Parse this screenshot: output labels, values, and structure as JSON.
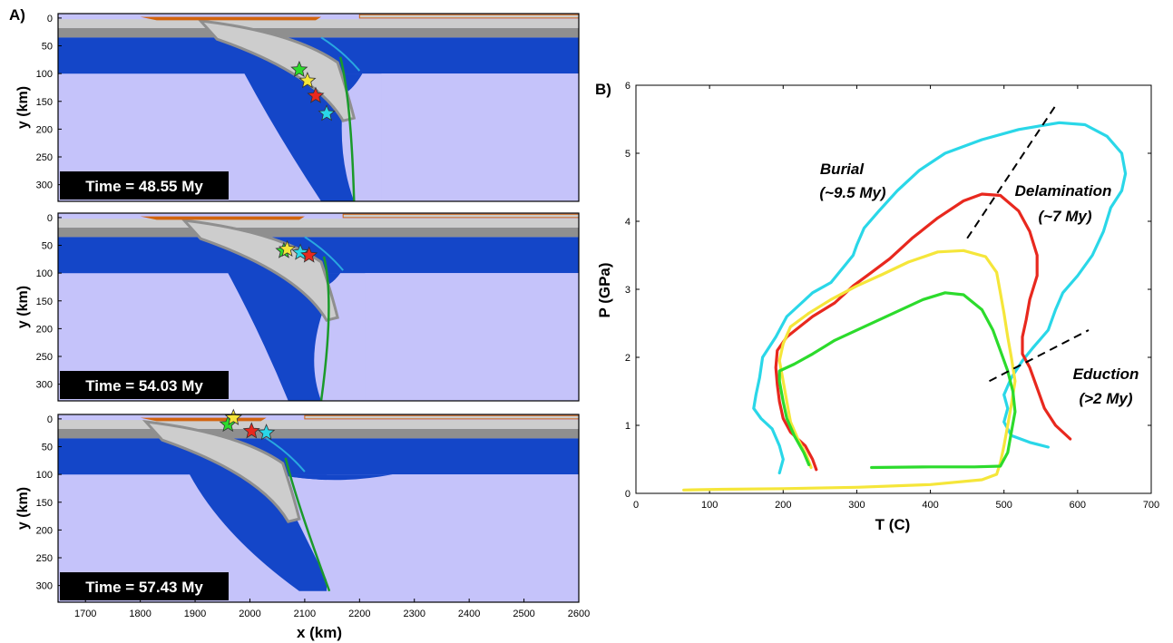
{
  "figure": {
    "panel_a_label": "A)",
    "panel_b_label": "B)"
  },
  "panel_a": {
    "ylabel": "y (km)",
    "xlabel": "x (km)",
    "y_ticks": [
      "0",
      "50",
      "100",
      "150",
      "200",
      "250",
      "300"
    ],
    "x_ticks": [
      "1700",
      "1800",
      "1900",
      "2000",
      "2100",
      "2200",
      "2300",
      "2400",
      "2500",
      "2600"
    ],
    "xlim": [
      1650,
      2600
    ],
    "ylim": [
      330,
      -8
    ],
    "colors": {
      "mantle": "#c5c3fa",
      "lithosphere": "#1446c8",
      "crust_light": "#cdcdcd",
      "crust_dark": "#8f8f8f",
      "sediment": "#d2640f",
      "eclogite": "#1a9a2a",
      "water": "#29a8e0"
    },
    "snapshots": [
      {
        "time_label": "Time = 48.55 My",
        "stars": [
          {
            "color": "#2cdb2c",
            "x": 2090,
            "y": 93
          },
          {
            "color": "#f5e63a",
            "x": 2105,
            "y": 113
          },
          {
            "color": "#e8281e",
            "x": 2120,
            "y": 140
          },
          {
            "color": "#2ad7e8",
            "x": 2140,
            "y": 172
          }
        ]
      },
      {
        "time_label": "Time = 54.03 My",
        "stars": [
          {
            "color": "#2cdb2c",
            "x": 2062,
            "y": 60
          },
          {
            "color": "#f5e63a",
            "x": 2068,
            "y": 57
          },
          {
            "color": "#2ad7e8",
            "x": 2092,
            "y": 63
          },
          {
            "color": "#e8281e",
            "x": 2108,
            "y": 68
          }
        ]
      },
      {
        "time_label": "Time = 57.43 My",
        "stars": [
          {
            "color": "#2cdb2c",
            "x": 1960,
            "y": 10
          },
          {
            "color": "#f5e63a",
            "x": 1970,
            "y": -2
          },
          {
            "color": "#e8281e",
            "x": 2003,
            "y": 22
          },
          {
            "color": "#2ad7e8",
            "x": 2030,
            "y": 25
          }
        ]
      }
    ]
  },
  "chart_data": {
    "type": "line",
    "xlabel": "T (C)",
    "ylabel": "P (GPa)",
    "xlim": [
      0,
      700
    ],
    "ylim": [
      0,
      6
    ],
    "x_ticks": [
      "0",
      "100",
      "200",
      "300",
      "400",
      "500",
      "600",
      "700"
    ],
    "y_ticks": [
      "0",
      "1",
      "2",
      "3",
      "4",
      "5",
      "6"
    ],
    "annotations": [
      {
        "line1": "Burial",
        "line2": "(~9.5 My)"
      },
      {
        "line1": "Delamination",
        "line2": "(~7 My)"
      },
      {
        "line1": "Eduction",
        "line2": "(>2 My)"
      }
    ],
    "series": [
      {
        "color": "#2ad7e8",
        "points": [
          [
            195,
            0.3
          ],
          [
            200,
            0.5
          ],
          [
            195,
            0.7
          ],
          [
            185,
            0.95
          ],
          [
            170,
            1.1
          ],
          [
            160,
            1.25
          ],
          [
            163,
            1.45
          ],
          [
            168,
            1.7
          ],
          [
            172,
            2.0
          ],
          [
            190,
            2.3
          ],
          [
            205,
            2.6
          ],
          [
            225,
            2.8
          ],
          [
            240,
            2.95
          ],
          [
            265,
            3.1
          ],
          [
            280,
            3.3
          ],
          [
            295,
            3.5
          ],
          [
            300,
            3.65
          ],
          [
            310,
            3.9
          ],
          [
            330,
            4.15
          ],
          [
            355,
            4.45
          ],
          [
            385,
            4.75
          ],
          [
            420,
            5.0
          ],
          [
            470,
            5.2
          ],
          [
            520,
            5.35
          ],
          [
            575,
            5.45
          ],
          [
            610,
            5.42
          ],
          [
            640,
            5.25
          ],
          [
            660,
            5.0
          ],
          [
            665,
            4.7
          ],
          [
            660,
            4.45
          ],
          [
            645,
            4.2
          ],
          [
            635,
            3.85
          ],
          [
            620,
            3.5
          ],
          [
            600,
            3.2
          ],
          [
            580,
            2.95
          ],
          [
            570,
            2.7
          ],
          [
            560,
            2.4
          ],
          [
            540,
            2.15
          ],
          [
            525,
            1.95
          ],
          [
            510,
            1.7
          ],
          [
            500,
            1.45
          ],
          [
            505,
            1.25
          ],
          [
            500,
            1.05
          ],
          [
            510,
            0.85
          ],
          [
            535,
            0.75
          ],
          [
            560,
            0.68
          ]
        ]
      },
      {
        "color": "#e8281e",
        "points": [
          [
            245,
            0.35
          ],
          [
            240,
            0.5
          ],
          [
            230,
            0.7
          ],
          [
            210,
            0.9
          ],
          [
            200,
            1.1
          ],
          [
            195,
            1.35
          ],
          [
            192,
            1.6
          ],
          [
            190,
            1.85
          ],
          [
            192,
            2.1
          ],
          [
            205,
            2.3
          ],
          [
            240,
            2.6
          ],
          [
            270,
            2.8
          ],
          [
            295,
            3.05
          ],
          [
            320,
            3.25
          ],
          [
            345,
            3.45
          ],
          [
            375,
            3.75
          ],
          [
            410,
            4.05
          ],
          [
            445,
            4.3
          ],
          [
            470,
            4.4
          ],
          [
            495,
            4.38
          ],
          [
            520,
            4.15
          ],
          [
            535,
            3.85
          ],
          [
            545,
            3.5
          ],
          [
            545,
            3.2
          ],
          [
            535,
            2.85
          ],
          [
            530,
            2.55
          ],
          [
            525,
            2.3
          ],
          [
            525,
            2.05
          ],
          [
            535,
            1.85
          ],
          [
            545,
            1.55
          ],
          [
            555,
            1.25
          ],
          [
            570,
            1.0
          ],
          [
            590,
            0.8
          ]
        ]
      },
      {
        "color": "#f5e63a",
        "points": [
          [
            65,
            0.05
          ],
          [
            120,
            0.06
          ],
          [
            200,
            0.07
          ],
          [
            300,
            0.09
          ],
          [
            400,
            0.13
          ],
          [
            470,
            0.2
          ],
          [
            490,
            0.28
          ],
          [
            495,
            0.45
          ],
          [
            500,
            0.7
          ],
          [
            505,
            1.0
          ],
          [
            510,
            1.3
          ],
          [
            515,
            1.65
          ],
          [
            510,
            2.0
          ],
          [
            505,
            2.3
          ],
          [
            500,
            2.65
          ],
          [
            495,
            2.95
          ],
          [
            490,
            3.25
          ],
          [
            475,
            3.48
          ],
          [
            445,
            3.57
          ],
          [
            410,
            3.55
          ],
          [
            370,
            3.4
          ],
          [
            335,
            3.22
          ],
          [
            300,
            3.05
          ],
          [
            265,
            2.85
          ],
          [
            235,
            2.65
          ],
          [
            210,
            2.45
          ],
          [
            200,
            2.2
          ],
          [
            195,
            1.95
          ],
          [
            200,
            1.65
          ],
          [
            205,
            1.35
          ],
          [
            210,
            1.05
          ],
          [
            220,
            0.8
          ],
          [
            232,
            0.55
          ],
          [
            238,
            0.38
          ]
        ]
      },
      {
        "color": "#2cdb2c",
        "points": [
          [
            320,
            0.38
          ],
          [
            400,
            0.39
          ],
          [
            460,
            0.39
          ],
          [
            495,
            0.4
          ],
          [
            505,
            0.6
          ],
          [
            510,
            0.9
          ],
          [
            515,
            1.2
          ],
          [
            512,
            1.5
          ],
          [
            505,
            1.8
          ],
          [
            495,
            2.1
          ],
          [
            485,
            2.4
          ],
          [
            470,
            2.7
          ],
          [
            445,
            2.92
          ],
          [
            420,
            2.95
          ],
          [
            390,
            2.85
          ],
          [
            350,
            2.65
          ],
          [
            310,
            2.45
          ],
          [
            270,
            2.25
          ],
          [
            240,
            2.05
          ],
          [
            215,
            1.9
          ],
          [
            195,
            1.8
          ],
          [
            195,
            1.65
          ],
          [
            200,
            1.35
          ],
          [
            205,
            1.1
          ],
          [
            215,
            0.85
          ],
          [
            228,
            0.6
          ],
          [
            235,
            0.42
          ]
        ]
      }
    ],
    "dashed_lines": [
      {
        "from": [
          450,
          3.75
        ],
        "to": [
          570,
          5.7
        ]
      },
      {
        "from": [
          480,
          1.65
        ],
        "to": [
          615,
          2.4
        ]
      }
    ]
  }
}
